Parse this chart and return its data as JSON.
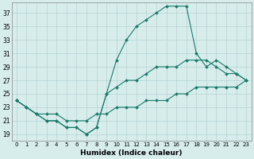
{
  "xlabel": "Humidex (Indice chaleur)",
  "background_color": "#d6edec",
  "line_color": "#1a7a6a",
  "xlim": [
    -0.5,
    23.5
  ],
  "ylim": [
    18.0,
    38.5
  ],
  "xticks": [
    0,
    1,
    2,
    3,
    4,
    5,
    6,
    7,
    8,
    9,
    10,
    11,
    12,
    13,
    14,
    15,
    16,
    17,
    18,
    19,
    20,
    21,
    22,
    23
  ],
  "yticks": [
    19,
    21,
    23,
    25,
    27,
    29,
    31,
    33,
    35,
    37
  ],
  "curve_top": [
    24,
    23,
    22,
    21,
    21,
    20,
    20,
    19,
    20,
    25,
    30,
    33,
    35,
    36,
    37,
    38,
    38,
    38,
    31,
    29,
    30,
    29,
    28,
    27
  ],
  "curve_mid": [
    24,
    23,
    22,
    21,
    21,
    20,
    20,
    19,
    20,
    25,
    26,
    27,
    27,
    28,
    29,
    29,
    29,
    30,
    30,
    30,
    29,
    28,
    28,
    27
  ],
  "curve_bot": [
    24,
    23,
    22,
    22,
    22,
    21,
    21,
    21,
    22,
    22,
    23,
    23,
    23,
    24,
    24,
    24,
    25,
    25,
    26,
    26,
    26,
    26,
    26,
    27
  ]
}
